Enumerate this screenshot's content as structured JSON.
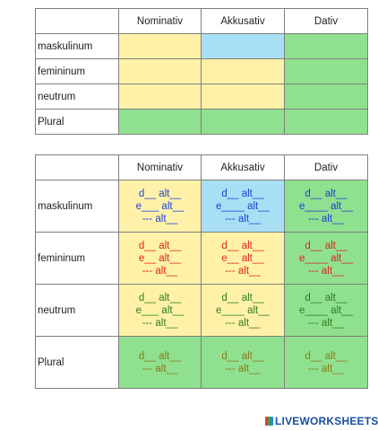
{
  "table1": {
    "headers": [
      "",
      "Nominativ",
      "Akkusativ",
      "Dativ"
    ],
    "rows": [
      {
        "label": "maskulinum",
        "colors": [
          "#fff2a8",
          "#a9dff5",
          "#8fe18f"
        ]
      },
      {
        "label": "femininum",
        "colors": [
          "#fff2a8",
          "#fff2a8",
          "#8fe18f"
        ]
      },
      {
        "label": "neutrum",
        "colors": [
          "#fff2a8",
          "#fff2a8",
          "#8fe18f"
        ]
      },
      {
        "label": "Plural",
        "colors": [
          "#8fe18f",
          "#8fe18f",
          "#8fe18f"
        ]
      }
    ]
  },
  "table2": {
    "headers": [
      "",
      "Nominativ",
      "Akkusativ",
      "Dativ"
    ],
    "rows": [
      {
        "label": "maskulinum",
        "cells": [
          {
            "color": "#fff2a8",
            "lines": [
              "d__ alt__",
              "e___ alt__",
              "--- alt__"
            ],
            "ink": "blue"
          },
          {
            "color": "#a9dff5",
            "lines": [
              "d__ alt__",
              "e____ alt__",
              "--- alt__"
            ],
            "ink": "blue"
          },
          {
            "color": "#8fe18f",
            "lines": [
              "d__ alt__",
              "e____ alt__",
              "--- alt__"
            ],
            "ink": "blue"
          }
        ]
      },
      {
        "label": "femininum",
        "cells": [
          {
            "color": "#fff2a8",
            "lines": [
              "d__ alt__",
              "e__ alt__",
              "--- alt__"
            ],
            "ink": "red"
          },
          {
            "color": "#fff2a8",
            "lines": [
              "d__ alt__",
              "e__ alt__",
              "--- alt__"
            ],
            "ink": "red"
          },
          {
            "color": "#8fe18f",
            "lines": [
              "d__ alt__",
              "e____ alt__",
              "--- alt__"
            ],
            "ink": "red"
          }
        ]
      },
      {
        "label": "neutrum",
        "cells": [
          {
            "color": "#fff2a8",
            "lines": [
              "d__ alt__",
              "e___ alt__",
              "--- alt__"
            ],
            "ink": "green"
          },
          {
            "color": "#fff2a8",
            "lines": [
              "d__ alt__",
              "e____ alt__",
              "--- alt__"
            ],
            "ink": "green"
          },
          {
            "color": "#8fe18f",
            "lines": [
              "d__ alt__",
              "e____ alt__",
              "--- alt__"
            ],
            "ink": "green"
          }
        ]
      },
      {
        "label": "Plural",
        "cells": [
          {
            "color": "#8fe18f",
            "lines": [
              "d__ alt__",
              "--- alt__"
            ],
            "ink": "olive"
          },
          {
            "color": "#8fe18f",
            "lines": [
              "d__ alt__",
              "--- alt__"
            ],
            "ink": "olive"
          },
          {
            "color": "#8fe18f",
            "lines": [
              "d__ alt__",
              "--- alt__"
            ],
            "ink": "olive"
          }
        ]
      }
    ]
  },
  "footer": {
    "brand": "LIVEWORKSHEETS"
  }
}
